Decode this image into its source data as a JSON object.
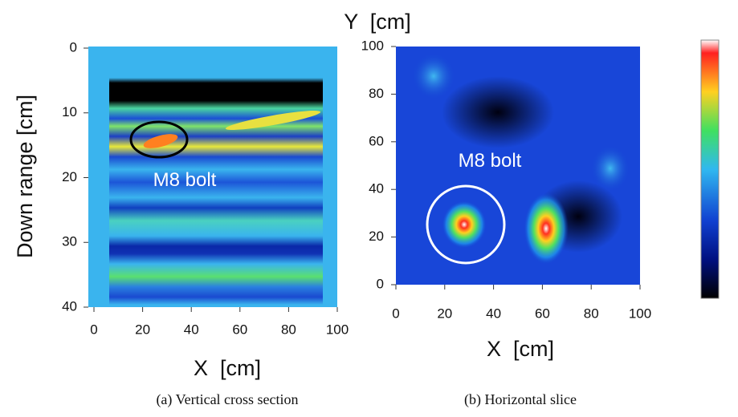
{
  "figure": {
    "panels": [
      {
        "x_label": "X  [cm]",
        "y_label": "Down range [cm]",
        "xticks": [
          0,
          20,
          40,
          60,
          80,
          100
        ],
        "yticks": [
          0,
          10,
          20,
          30,
          40
        ],
        "annotation": "M8 bolt",
        "caption": "(a) Vertical cross section"
      },
      {
        "x_label": "X  [cm]",
        "y_label": "Y  [cm]",
        "xticks": [
          0,
          20,
          40,
          60,
          80,
          100
        ],
        "yticks": [
          0,
          20,
          40,
          60,
          80,
          100
        ],
        "annotation": "M8 bolt",
        "caption": "(b) Horizontal slice"
      }
    ]
  }
}
